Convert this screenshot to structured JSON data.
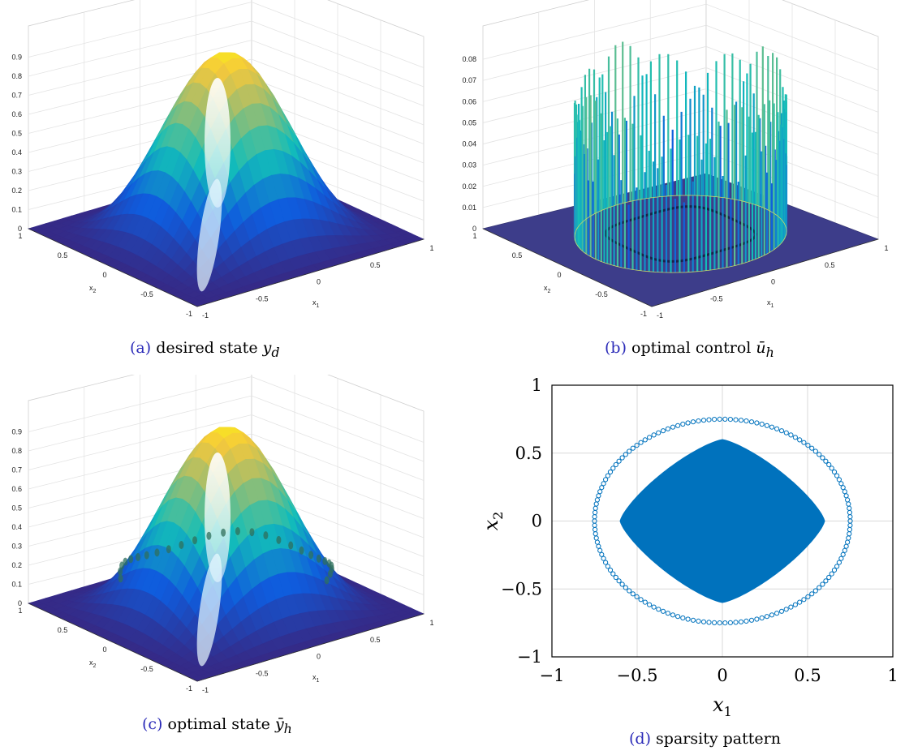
{
  "chart_data": [
    {
      "type": "surface",
      "id": "a",
      "caption_label": "(a)",
      "caption_text": "desired state",
      "caption_math_base": "y",
      "caption_math_sub": "d",
      "caption_math_accent": "",
      "xlabel_base": "x",
      "xlabel_sub": "1",
      "ylabel_base": "x",
      "ylabel_sub": "2",
      "z_ticks": [
        "0",
        "0.1",
        "0.2",
        "0.3",
        "0.4",
        "0.5",
        "0.6",
        "0.7",
        "0.8",
        "0.9"
      ],
      "x_ticks": [
        "-1",
        "-0.5",
        "0",
        "0.5",
        "1"
      ],
      "y_ticks": [
        "-1",
        "-0.5",
        "0",
        "0.5",
        "1"
      ],
      "zlim": [
        0,
        1
      ],
      "xlim": [
        -1,
        1
      ],
      "ylim": [
        -1,
        1
      ],
      "peak_value": 0.95,
      "grid": true,
      "colormap": "parula"
    },
    {
      "type": "surface",
      "id": "b",
      "caption_label": "(b)",
      "caption_text": "optimal control",
      "caption_math_base": "u",
      "caption_math_sub": "h",
      "caption_math_accent": "̄",
      "xlabel_base": "x",
      "xlabel_sub": "1",
      "ylabel_base": "x",
      "ylabel_sub": "2",
      "z_ticks": [
        "0",
        "0.01",
        "0.02",
        "0.03",
        "0.04",
        "0.05",
        "0.06",
        "0.07",
        "0.08"
      ],
      "x_ticks": [
        "-1",
        "-0.5",
        "0",
        "0.5",
        "1"
      ],
      "y_ticks": [
        "-1",
        "-0.5",
        "0",
        "0.5",
        "1"
      ],
      "zlim": [
        0,
        0.09
      ],
      "xlim": [
        -1,
        1
      ],
      "ylim": [
        -1,
        1
      ],
      "ring_radius": 0.75,
      "spike_max": 0.085,
      "grid": true,
      "colormap": "parula"
    },
    {
      "type": "surface",
      "id": "c",
      "caption_label": "(c)",
      "caption_text": "optimal state",
      "caption_math_base": "y",
      "caption_math_sub": "h",
      "caption_math_accent": "̄",
      "xlabel_base": "x",
      "xlabel_sub": "1",
      "ylabel_base": "x",
      "ylabel_sub": "2",
      "z_ticks": [
        "0",
        "0.1",
        "0.2",
        "0.3",
        "0.4",
        "0.5",
        "0.6",
        "0.7",
        "0.8",
        "0.9"
      ],
      "x_ticks": [
        "-1",
        "-0.5",
        "0",
        "0.5",
        "1"
      ],
      "y_ticks": [
        "-1",
        "-0.5",
        "0",
        "0.5",
        "1"
      ],
      "zlim": [
        0,
        1
      ],
      "xlim": [
        -1,
        1
      ],
      "ylim": [
        -1,
        1
      ],
      "peak_value": 0.95,
      "grid": true,
      "colormap": "parula"
    },
    {
      "type": "scatter",
      "id": "d",
      "caption_label": "(d)",
      "caption_text": "sparsity pattern",
      "xlabel_base": "x",
      "xlabel_sub": "1",
      "ylabel_base": "x",
      "ylabel_sub": "2",
      "xlim": [
        -1,
        1
      ],
      "ylim": [
        -1,
        1
      ],
      "x_ticks": [
        -1,
        -0.5,
        0,
        0.5,
        1
      ],
      "y_ticks": [
        -1,
        -0.5,
        0,
        0.5,
        1
      ],
      "x_tick_labels": [
        "−1",
        "−0.5",
        "0",
        "0.5",
        "1"
      ],
      "y_tick_labels": [
        "−1",
        "−0.5",
        "0",
        "0.5",
        "1"
      ],
      "grid": true,
      "color": "#0072bd",
      "filled_region": {
        "shape": "rounded-diamond",
        "half_width": 0.6,
        "corner_rounding": 0.25
      },
      "ring": {
        "radius": 0.75,
        "marker": "circle",
        "count": 150
      }
    }
  ]
}
